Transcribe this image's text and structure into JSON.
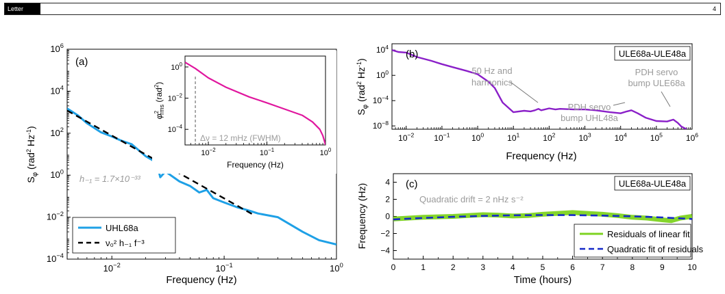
{
  "header": {
    "tag": "Letter",
    "page_number": "4"
  },
  "colors": {
    "blue": "#1ea0e6",
    "magenta": "#e0169e",
    "purple": "#8a1fc8",
    "green": "#7ed321",
    "navy": "#1428c8",
    "annot": "#9a9a9a"
  },
  "chart_data": [
    {
      "id": "a",
      "type": "line",
      "panel_label": "(a)",
      "xlabel": "Frequency (Hz)",
      "ylabel": "S_φ (rad² Hz⁻¹)",
      "xscale": "log",
      "yscale": "log",
      "xlim": [
        0.004,
        1
      ],
      "ylim": [
        0.0001,
        1000000
      ],
      "xticks": [
        {
          "v": 0.01,
          "base": "10",
          "exp": "−2"
        },
        {
          "v": 0.1,
          "base": "10",
          "exp": "−1"
        },
        {
          "v": 1,
          "base": "10",
          "exp": "0"
        }
      ],
      "yticks": [
        {
          "v": 0.0001,
          "base": "10",
          "exp": "−4"
        },
        {
          "v": 0.01,
          "base": "10",
          "exp": "−2"
        },
        {
          "v": 1,
          "base": "10",
          "exp": "0"
        },
        {
          "v": 100,
          "base": "10",
          "exp": "2"
        },
        {
          "v": 10000,
          "base": "10",
          "exp": "4"
        },
        {
          "v": 1000000,
          "base": "10",
          "exp": "6"
        }
      ],
      "annotation": "h₋₁ = 1.7×10⁻³³",
      "legend_position": "bottom-left",
      "series": [
        {
          "name": "UHL68a",
          "style": "solid",
          "x": [
            0.004,
            0.005,
            0.006,
            0.008,
            0.01,
            0.012,
            0.015,
            0.02,
            0.025,
            0.027,
            0.03,
            0.04,
            0.05,
            0.06,
            0.07,
            0.08,
            0.1,
            0.13,
            0.17,
            0.2,
            0.3,
            0.5,
            0.7,
            1.0
          ],
          "y": [
            1500,
            700,
            300,
            110,
            70,
            45,
            30,
            8,
            4,
            0.8,
            1.5,
            0.5,
            0.3,
            0.15,
            0.2,
            0.08,
            0.05,
            0.03,
            0.02,
            0.015,
            0.01,
            0.002,
            0.0008,
            0.0005
          ]
        },
        {
          "name": "ν₀² h₋₁ f⁻³",
          "style": "dashed",
          "x": [
            0.004,
            0.18
          ],
          "y": [
            1200,
            0.0135
          ]
        }
      ]
    },
    {
      "id": "a-inset",
      "type": "line",
      "xlabel": "Frequency (Hz)",
      "ylabel": "φ²rms (rad²)",
      "xscale": "log",
      "yscale": "log",
      "xlim": [
        0.004,
        1
      ],
      "ylim": [
        1e-05,
        5
      ],
      "xticks": [
        {
          "v": 0.01,
          "base": "10",
          "exp": "−2"
        },
        {
          "v": 0.1,
          "base": "10",
          "exp": "−1"
        },
        {
          "v": 1,
          "base": "10",
          "exp": "0"
        }
      ],
      "yticks": [
        {
          "v": 0.0001,
          "base": "10",
          "exp": "−4"
        },
        {
          "v": 0.01,
          "base": "10",
          "exp": "−2"
        },
        {
          "v": 1,
          "base": "10",
          "exp": "0"
        }
      ],
      "annotation": "Δν = 12 mHz (FWHM)",
      "marker_x": 0.006,
      "series": [
        {
          "name": "",
          "x": [
            0.004,
            0.006,
            0.01,
            0.02,
            0.05,
            0.1,
            0.2,
            0.4,
            0.6,
            0.8,
            0.9,
            0.95,
            1.0
          ],
          "y": [
            2.0,
            0.8,
            0.2,
            0.05,
            0.012,
            0.005,
            0.002,
            0.0008,
            0.0003,
            0.0001,
            4e-05,
            2e-05,
            1e-05
          ]
        }
      ]
    },
    {
      "id": "b",
      "type": "line",
      "panel_label": "(b)",
      "title_box": "ULE68a-ULE48a",
      "xlabel": "Frequency (Hz)",
      "ylabel": "S_φ (rad² Hz⁻¹)",
      "xscale": "log",
      "yscale": "log",
      "xlim": [
        0.004,
        1000000
      ],
      "ylim": [
        3e-09,
        100000
      ],
      "xticks": [
        {
          "v": 0.01,
          "base": "10",
          "exp": "−2"
        },
        {
          "v": 0.1,
          "base": "10",
          "exp": "−1"
        },
        {
          "v": 1,
          "base": "10",
          "exp": "0"
        },
        {
          "v": 10,
          "base": "10",
          "exp": "1"
        },
        {
          "v": 100,
          "base": "10",
          "exp": "2"
        },
        {
          "v": 1000,
          "base": "10",
          "exp": "3"
        },
        {
          "v": 10000,
          "base": "10",
          "exp": "4"
        },
        {
          "v": 100000,
          "base": "10",
          "exp": "5"
        },
        {
          "v": 1000000,
          "base": "10",
          "exp": "6"
        }
      ],
      "yticks": [
        {
          "v": 1e-08,
          "base": "10",
          "exp": "−8"
        },
        {
          "v": 0.0001,
          "base": "10",
          "exp": "−4"
        },
        {
          "v": 1,
          "base": "10",
          "exp": "0"
        },
        {
          "v": 10000,
          "base": "10",
          "exp": "4"
        }
      ],
      "annotations": [
        {
          "lines": [
            "50 Hz and",
            "harmonics"
          ],
          "x": 80,
          "y": 0.5
        },
        {
          "lines": [
            "PDH servo",
            "bump UHL48a"
          ],
          "x": 2000,
          "y": 2e-08
        },
        {
          "lines": [
            "PDH servo",
            "bump ULE68a"
          ],
          "x": 200000,
          "y": 0.01
        }
      ],
      "series": [
        {
          "name": "",
          "x": [
            0.004,
            0.006,
            0.01,
            0.02,
            0.05,
            0.1,
            0.2,
            0.5,
            1,
            2,
            3,
            5,
            10,
            20,
            30,
            40,
            50,
            60,
            100,
            150,
            200,
            500,
            1000,
            2000,
            5000,
            10000,
            15000,
            20000,
            30000,
            50000,
            100000,
            200000,
            300000,
            400000,
            500000,
            700000
          ],
          "y": [
            10000,
            5000,
            4000,
            800,
            200,
            60,
            20,
            5,
            1.5,
            0.1,
            0.01,
            5e-05,
            1.5e-06,
            2.5e-06,
            2e-06,
            3e-06,
            5e-06,
            3e-06,
            6e-06,
            4e-06,
            5e-06,
            4e-06,
            4e-06,
            3e-06,
            1.5e-06,
            1e-06,
            2e-06,
            3e-06,
            1e-06,
            2e-07,
            6e-08,
            5e-08,
            1e-07,
            3e-08,
            8e-09,
            3e-09
          ]
        }
      ]
    },
    {
      "id": "c",
      "type": "line",
      "panel_label": "(c)",
      "title_box": "ULE68a-ULE48a",
      "xlabel": "Time (hours)",
      "ylabel": "Frequency (Hz)",
      "xlim": [
        0,
        10
      ],
      "ylim": [
        -5,
        5
      ],
      "xticks": [
        0,
        1,
        2,
        3,
        4,
        5,
        6,
        7,
        8,
        9,
        10
      ],
      "yticks": [
        -4,
        -2,
        0,
        2,
        4
      ],
      "annotation": "Quadratic drift = 2 nHz s⁻²",
      "legend_position": "bottom-right",
      "series": [
        {
          "name": "Residuals of linear fit",
          "style": "solid",
          "x": [
            0,
            0.5,
            1,
            1.5,
            2,
            2.5,
            3,
            3.5,
            4,
            4.5,
            5,
            5.5,
            6,
            6.5,
            7,
            7.5,
            8,
            8.5,
            9,
            9.3,
            9.6,
            10
          ],
          "y": [
            -0.3,
            -0.2,
            -0.1,
            -0.05,
            0,
            0.1,
            0.2,
            0.15,
            0.05,
            0.1,
            0.25,
            0.35,
            0.45,
            0.35,
            0.25,
            0.1,
            -0.1,
            -0.2,
            -0.4,
            -0.5,
            -0.2,
            0
          ]
        },
        {
          "name": "Quadratic fit of residuals",
          "style": "dashed",
          "x": [
            0,
            1,
            2,
            3,
            4,
            5,
            6,
            7,
            8,
            9,
            10
          ],
          "y": [
            -0.35,
            -0.18,
            -0.05,
            0.06,
            0.13,
            0.16,
            0.15,
            0.1,
            0.01,
            -0.12,
            -0.3
          ]
        }
      ]
    }
  ]
}
